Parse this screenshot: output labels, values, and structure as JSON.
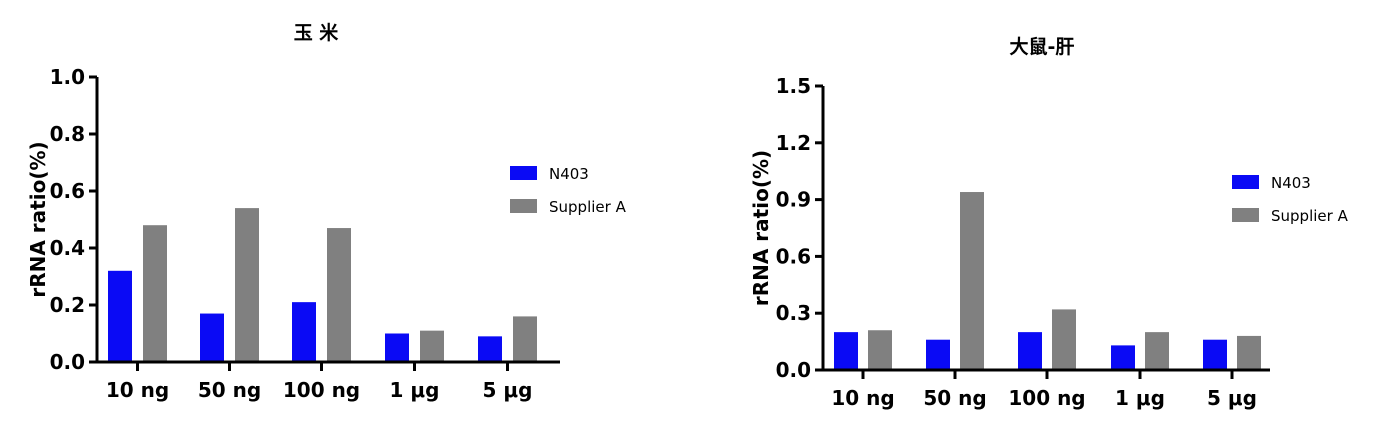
{
  "chart_data": [
    {
      "type": "bar",
      "title": "玉 米",
      "xlabel": "",
      "ylabel": "rRNA ratio(%)",
      "ylim": [
        0,
        1.0
      ],
      "yticks": [
        0.0,
        0.2,
        0.4,
        0.6,
        0.8,
        1.0
      ],
      "ytick_labels": [
        "0.0",
        "0.2",
        "0.4",
        "0.6",
        "0.8",
        "1.0"
      ],
      "categories": [
        "10 ng",
        "50 ng",
        "100 ng",
        "1 μg",
        "5 μg"
      ],
      "series": [
        {
          "name": "N403",
          "color": "#0a0af5",
          "values": [
            0.32,
            0.17,
            0.21,
            0.1,
            0.09
          ]
        },
        {
          "name": "Supplier A",
          "color": "#808080",
          "values": [
            0.48,
            0.54,
            0.47,
            0.11,
            0.16
          ]
        }
      ],
      "legend_position": "right"
    },
    {
      "type": "bar",
      "title": "大鼠-肝",
      "xlabel": "",
      "ylabel": "rRNA ratio(%)",
      "ylim": [
        0,
        1.5
      ],
      "yticks": [
        0.0,
        0.3,
        0.6,
        0.9,
        1.2,
        1.5
      ],
      "ytick_labels": [
        "0.0",
        "0.3",
        "0.6",
        "0.9",
        "1.2",
        "1.5"
      ],
      "categories": [
        "10 ng",
        "50 ng",
        "100 ng",
        "1 μg",
        "5 μg"
      ],
      "series": [
        {
          "name": "N403",
          "color": "#0a0af5",
          "values": [
            0.2,
            0.16,
            0.2,
            0.13,
            0.16
          ]
        },
        {
          "name": "Supplier A",
          "color": "#808080",
          "values": [
            0.21,
            0.94,
            0.32,
            0.2,
            0.18
          ]
        }
      ],
      "legend_position": "right"
    }
  ]
}
